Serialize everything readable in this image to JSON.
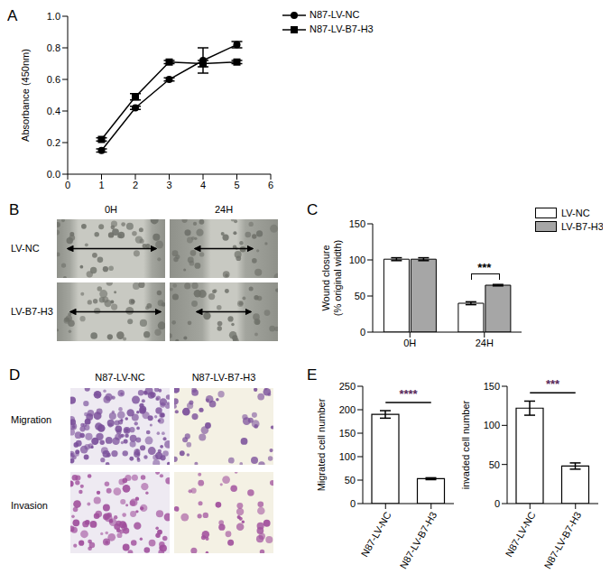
{
  "chart_data": [
    {
      "panel": "A",
      "type": "line",
      "x": [
        1,
        2,
        3,
        4,
        5
      ],
      "xlim": [
        0,
        6
      ],
      "xticks": [
        0,
        1,
        2,
        3,
        4,
        5,
        6
      ],
      "ylim": [
        0,
        1
      ],
      "yticks": [
        {
          "value": 0,
          "label": "0.0"
        },
        {
          "value": 0.2,
          "label": "0.2"
        },
        {
          "value": 0.4,
          "label": "0.4"
        },
        {
          "value": 0.6,
          "label": "0.6"
        },
        {
          "value": 0.8,
          "label": "0.8"
        },
        {
          "value": 1,
          "label": "1.0"
        }
      ],
      "ylabel": "Absorbance (450nm)",
      "legend": "right",
      "series": [
        {
          "name": "N87-LV-NC",
          "color": "#000000",
          "marker": "circle",
          "values": [
            0.15,
            0.42,
            0.6,
            0.72,
            0.82
          ],
          "errors": [
            0.01,
            0.01,
            0.01,
            0.08,
            0.02
          ]
        },
        {
          "name": "N87-LV-B7-H3",
          "color": "#000000",
          "marker": "square",
          "values": [
            0.22,
            0.49,
            0.71,
            0.7,
            0.71
          ],
          "errors": [
            0.01,
            0.02,
            0.01,
            0.02,
            0.01
          ]
        }
      ]
    },
    {
      "panel": "C",
      "type": "bar",
      "categories": [
        "0H",
        "24H"
      ],
      "ylim": [
        0,
        150
      ],
      "yticks": [
        0,
        50,
        100,
        150
      ],
      "ylabel": [
        "Wound closure",
        "(% original width)"
      ],
      "legend": "upper right",
      "series": [
        {
          "name": "LV-NC",
          "color": "#ffffff",
          "values": [
            101,
            40
          ],
          "errors": [
            2,
            2
          ]
        },
        {
          "name": "LV-B7-H3",
          "color": "#a6a6a6",
          "values": [
            101,
            65
          ],
          "errors": [
            2,
            1
          ]
        }
      ],
      "annotations": [
        {
          "text": "***",
          "category": "24H"
        }
      ]
    },
    {
      "panel": "E",
      "type": "bar",
      "categories": [
        "N87-LV-NC",
        "N87-LV-B7-H3"
      ],
      "values": [
        190,
        53
      ],
      "errors": [
        8,
        2
      ],
      "color": "#ffffff",
      "ylim": [
        0,
        250
      ],
      "yticks": [
        0,
        50,
        100,
        150,
        200,
        250
      ],
      "ylabel": "Migrated cell number",
      "annotations": [
        {
          "text": "****"
        }
      ]
    },
    {
      "type": "bar",
      "categories": [
        "N87-LV-NC",
        "N87-LV-B7-H3"
      ],
      "values": [
        122,
        48
      ],
      "errors": [
        9,
        4
      ],
      "color": "#ffffff",
      "ylim": [
        0,
        150
      ],
      "yticks": [
        0,
        50,
        100,
        150
      ],
      "ylabel": "invaded cell number",
      "annotations": [
        {
          "text": "***"
        }
      ]
    }
  ],
  "image_panels": [
    {
      "panel": "B",
      "columns": [
        "0H",
        "24H"
      ],
      "rows": [
        "LV-NC",
        "LV-B7-H3"
      ]
    },
    {
      "panel": "D",
      "columns": [
        "N87-LV-NC",
        "N87-LV-B7-H3"
      ],
      "rows": [
        "Migration",
        "Invasion"
      ]
    }
  ]
}
